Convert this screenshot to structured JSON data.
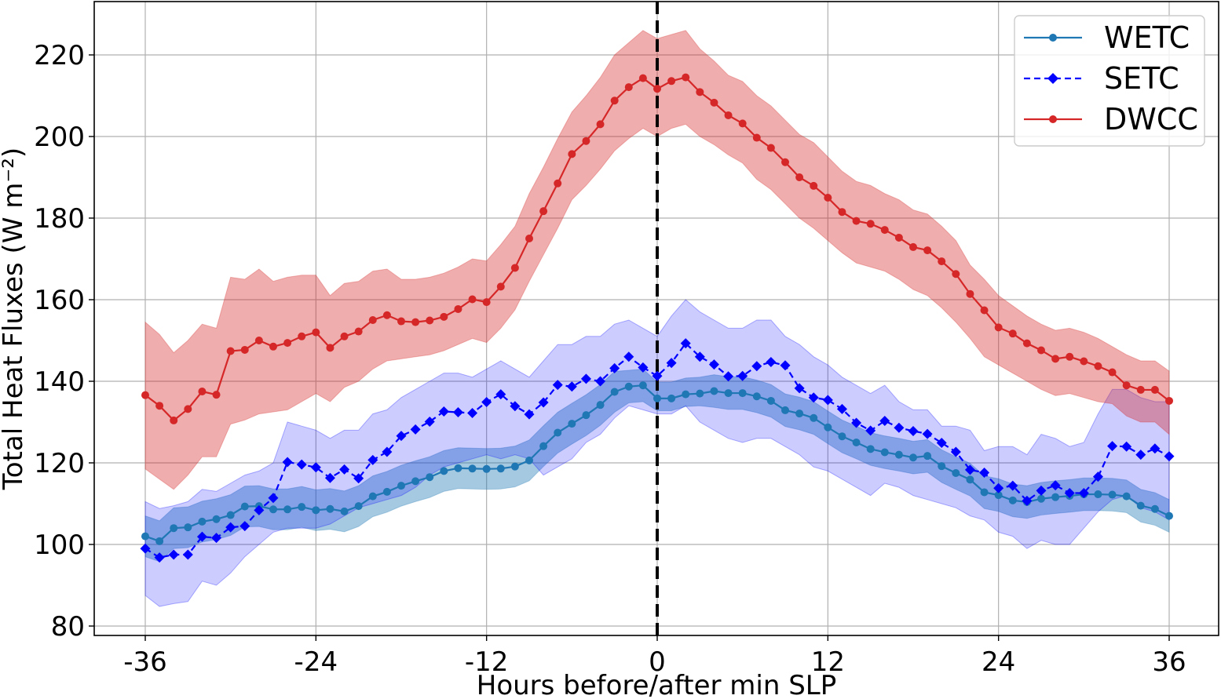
{
  "chart_data": {
    "type": "line",
    "title": "",
    "xlabel": "Hours before/after min SLP",
    "ylabel": "Total Heat Fluxes (W m⁻²)",
    "xlim": [
      -39.5,
      38.5
    ],
    "ylim": [
      78,
      232
    ],
    "xticks": [
      -36,
      -24,
      -12,
      0,
      12,
      24,
      36
    ],
    "xtick_labels": [
      "-36",
      "-24",
      "-12",
      "0",
      "12",
      "24",
      "36"
    ],
    "yticks": [
      80,
      100,
      120,
      140,
      160,
      180,
      200,
      220
    ],
    "ytick_labels": [
      "80",
      "100",
      "120",
      "140",
      "160",
      "180",
      "200",
      "220"
    ],
    "grid": true,
    "legend_position": "top-right",
    "vline": {
      "x": 0,
      "style": "dashed",
      "color": "#000000"
    },
    "x": [
      -36,
      -35,
      -34,
      -33,
      -32,
      -31,
      -30,
      -29,
      -28,
      -27,
      -26,
      -25,
      -24,
      -23,
      -22,
      -21,
      -20,
      -19,
      -18,
      -17,
      -16,
      -15,
      -14,
      -13,
      -12,
      -11,
      -10,
      -9,
      -8,
      -7,
      -6,
      -5,
      -4,
      -3,
      -2,
      -1,
      0,
      1,
      2,
      3,
      4,
      5,
      6,
      7,
      8,
      9,
      10,
      11,
      12,
      13,
      14,
      15,
      16,
      17,
      18,
      19,
      20,
      21,
      22,
      23,
      24,
      25,
      26,
      27,
      28,
      29,
      30,
      31,
      32,
      33,
      34,
      35,
      36
    ],
    "series": [
      {
        "name": "WETC",
        "color": "#1f77b4",
        "fill_color": "#1f77b4",
        "marker": "circle",
        "linestyle": "solid",
        "values": [
          102,
          100.8,
          104,
          104.2,
          105.6,
          106.2,
          107.2,
          109.3,
          109.4,
          108.6,
          108.6,
          109.2,
          108.4,
          108.7,
          108.1,
          109.4,
          111.8,
          112.9,
          114.4,
          115.5,
          116.5,
          118,
          118.7,
          118.6,
          118.5,
          118.6,
          119.1,
          120.6,
          124.1,
          127.4,
          129.6,
          131.7,
          134.2,
          137.4,
          138.7,
          139,
          135.8,
          135.8,
          136.8,
          137,
          137.6,
          137.1,
          137.1,
          136.3,
          135.2,
          132.9,
          132.1,
          131,
          128.7,
          126.5,
          125,
          123.4,
          122.6,
          122,
          121.3,
          121.7,
          119.2,
          117.5,
          115.9,
          112.8,
          112.1,
          110.8,
          110.4,
          111.2,
          111.6,
          111.9,
          112.3,
          112.3,
          112.2,
          111.8,
          109.5,
          108.7,
          107
        ],
        "lower": [
          97,
          95.8,
          99,
          99.2,
          100.6,
          101.2,
          102.2,
          104.3,
          104.4,
          103.6,
          103.6,
          104.2,
          103.4,
          103.7,
          103.1,
          104.4,
          106.8,
          107.9,
          109.4,
          110.5,
          111.5,
          113,
          113.7,
          113.6,
          113.5,
          113.6,
          114.1,
          115.6,
          119.1,
          122.4,
          124.6,
          126.7,
          129.2,
          132.4,
          134.7,
          135,
          132.8,
          132.8,
          133.8,
          134,
          133.6,
          133.1,
          133.1,
          132.3,
          131.2,
          128.9,
          128.1,
          127,
          124.7,
          122.5,
          121,
          119.4,
          118.6,
          118,
          117.3,
          117.7,
          115.2,
          113.5,
          111.9,
          108.8,
          108.1,
          106.8,
          106.4,
          107.2,
          107.6,
          107.9,
          108.3,
          108.3,
          108.2,
          107.8,
          105.5,
          104.7,
          103
        ],
        "upper": [
          107,
          105.8,
          109,
          109.2,
          110.6,
          111.2,
          112.2,
          114.3,
          114.4,
          113.6,
          113.6,
          114.2,
          113.4,
          113.7,
          113.1,
          114.4,
          116.8,
          117.9,
          119.4,
          120.5,
          121.5,
          123,
          123.7,
          123.6,
          123.5,
          123.6,
          124.1,
          125.6,
          129.1,
          132.4,
          134.6,
          136.7,
          139.2,
          142.4,
          142.7,
          143,
          139.8,
          139.8,
          140.8,
          141,
          141.6,
          141.1,
          141.1,
          140.3,
          139.2,
          136.9,
          136.1,
          135,
          132.7,
          130.5,
          129,
          127.4,
          126.6,
          126,
          125.3,
          125.7,
          123.2,
          121.5,
          119.9,
          116.8,
          116.1,
          114.8,
          114.4,
          115.2,
          115.6,
          115.9,
          116.3,
          116.3,
          116.2,
          115.8,
          113.5,
          112.7,
          111
        ]
      },
      {
        "name": "SETC",
        "color": "#0000ff",
        "fill_color": "#0000ff",
        "marker": "diamond",
        "linestyle": "dashed",
        "values": [
          99,
          96.8,
          97.5,
          97.5,
          101.9,
          101.6,
          104.2,
          104.5,
          108.4,
          111.4,
          120.2,
          119.6,
          118.9,
          116.3,
          118.4,
          116.2,
          120.7,
          122.7,
          126.6,
          128.2,
          130.1,
          132.6,
          132.4,
          132.2,
          134.9,
          136.8,
          133.9,
          131.9,
          134.8,
          139.1,
          138.7,
          140.6,
          140,
          143.2,
          146,
          143.4,
          141.3,
          144.5,
          149.3,
          146,
          144.1,
          141.2,
          141.3,
          143.7,
          144.7,
          143.9,
          138.3,
          136,
          135.4,
          133.2,
          129.8,
          127.9,
          130.3,
          128.6,
          127.8,
          127.1,
          124.9,
          122.7,
          118.3,
          117.6,
          113.8,
          114.4,
          110.7,
          113.2,
          114.5,
          112.6,
          112.6,
          116.6,
          124.1,
          124,
          122,
          123.5,
          121.6
        ],
        "lower": [
          87.5,
          84.8,
          85.5,
          86,
          91,
          90,
          93,
          97,
          100,
          103,
          104,
          104,
          104,
          105,
          107,
          109,
          110,
          111,
          112,
          114,
          117,
          119,
          120,
          121,
          122,
          121,
          122,
          121,
          117,
          119,
          121,
          125,
          127,
          131,
          134,
          133,
          132,
          132,
          134,
          130,
          128,
          126,
          125,
          126,
          126,
          124,
          122,
          119,
          118,
          116,
          114,
          112,
          115,
          114,
          112,
          111,
          110,
          109,
          107,
          106,
          103,
          102,
          99,
          101,
          100,
          100,
          104,
          108,
          111,
          112,
          109,
          108,
          106
        ],
        "upper": [
          110.5,
          108.8,
          109.5,
          110.5,
          113.5,
          113,
          115,
          117,
          118,
          120,
          130,
          129,
          128,
          126,
          128,
          128,
          132,
          133,
          136,
          138,
          140,
          142,
          142,
          141,
          143,
          145,
          143,
          141,
          145,
          149,
          149,
          151,
          151,
          154,
          155,
          153,
          151,
          156,
          160,
          157,
          155,
          153,
          153,
          155,
          155,
          151,
          149,
          146,
          144,
          141,
          139,
          137,
          139,
          135,
          133,
          133,
          129,
          129,
          128,
          123,
          124,
          124,
          122,
          127,
          126,
          124,
          125,
          132,
          138,
          138,
          136,
          135,
          135
        ]
      },
      {
        "name": "DWCC",
        "color": "#d62728",
        "fill_color": "#d62728",
        "marker": "circle",
        "linestyle": "solid",
        "values": [
          136.6,
          134,
          130.4,
          133.2,
          137.5,
          136.7,
          147.4,
          147.7,
          150,
          148.5,
          149.4,
          151,
          152,
          148.2,
          151,
          152.2,
          155,
          156.2,
          154.7,
          154.5,
          154.9,
          155.8,
          157.7,
          160.1,
          159.4,
          163.2,
          167.8,
          175,
          181.7,
          188.5,
          195.7,
          198.9,
          203,
          208.8,
          212.1,
          214.3,
          211.7,
          213.6,
          214.5,
          210.9,
          208.3,
          205.2,
          203.2,
          199.7,
          197.2,
          193.7,
          190,
          187.9,
          185,
          181.5,
          179.3,
          178.6,
          177.1,
          175.2,
          172.9,
          172.1,
          169.4,
          166.3,
          161.4,
          157.4,
          153.2,
          151.7,
          149.3,
          147.6,
          145.5,
          146,
          144.9,
          143.7,
          142.2,
          139,
          137.9,
          137.9,
          135.2
        ],
        "lower": [
          118.5,
          116,
          113.5,
          117,
          121.5,
          121.5,
          129.5,
          130.5,
          132,
          132.5,
          133,
          135,
          137,
          135,
          138.5,
          140,
          143,
          145,
          145.5,
          146,
          146.5,
          147.5,
          149,
          150.5,
          149.5,
          153,
          157.5,
          164.5,
          171,
          177.5,
          184.5,
          188,
          192,
          196.5,
          199.5,
          202,
          200,
          202,
          203,
          200,
          198,
          195.5,
          193.5,
          189.5,
          187,
          183.5,
          180,
          177.5,
          174.5,
          171.5,
          169,
          168,
          167,
          165,
          162.5,
          161,
          158,
          154.5,
          150.5,
          146,
          144,
          142,
          140,
          138,
          136.5,
          137,
          136,
          135,
          134.5,
          131.5,
          130,
          130,
          127
        ],
        "upper": [
          154.5,
          151.5,
          147,
          150,
          154,
          153,
          165.5,
          165,
          167.5,
          164.5,
          165.5,
          166,
          166,
          161,
          164,
          164.5,
          167,
          167.5,
          165,
          165,
          165.5,
          166.5,
          168,
          170,
          169.5,
          173.5,
          178,
          186,
          192.5,
          199.5,
          206,
          210,
          214.5,
          220,
          223,
          226,
          224,
          225,
          226,
          221.5,
          218.5,
          215,
          213.5,
          210,
          207.5,
          204,
          200.5,
          198.5,
          195,
          191.5,
          189,
          188,
          186,
          184.5,
          182,
          181,
          178,
          174.5,
          168.5,
          165,
          161,
          158.5,
          156,
          154,
          152.5,
          153,
          152,
          150.5,
          148.5,
          146.5,
          145,
          145,
          142.5
        ]
      }
    ],
    "legend": [
      {
        "label": "WETC",
        "color": "#1f77b4",
        "marker": "circle",
        "linestyle": "solid"
      },
      {
        "label": "SETC",
        "color": "#0000ff",
        "marker": "diamond",
        "linestyle": "dashed"
      },
      {
        "label": "DWCC",
        "color": "#d62728",
        "marker": "circle",
        "linestyle": "solid"
      }
    ]
  }
}
